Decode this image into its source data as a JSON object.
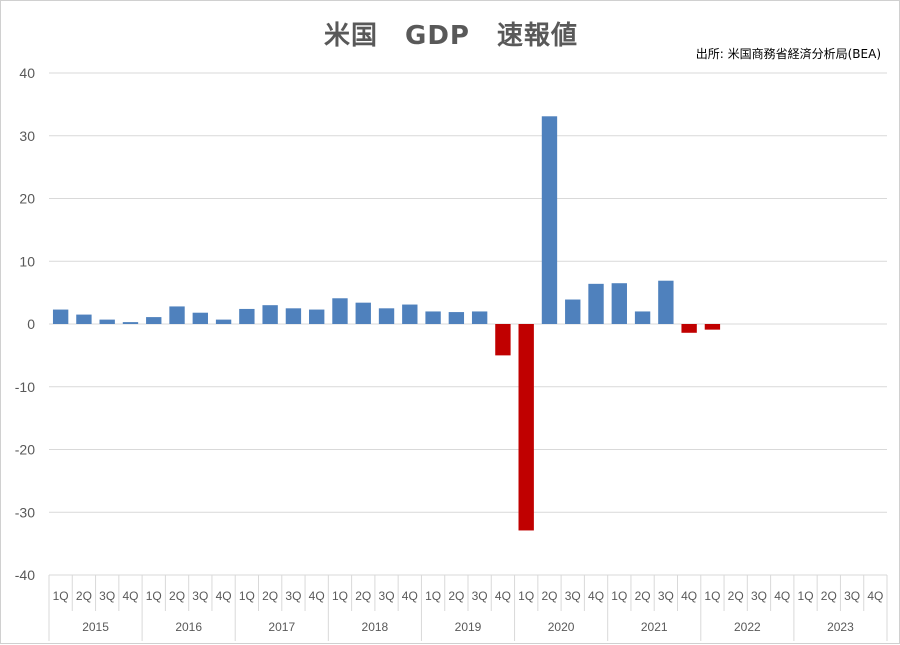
{
  "chart_data": {
    "type": "bar",
    "title": "米国　GDP　速報値",
    "source": "出所: 米国商務省経済分析局(BEA)",
    "ylim": [
      -40,
      40
    ],
    "yticks": [
      40,
      30,
      20,
      10,
      0,
      -10,
      -20,
      -30,
      -40
    ],
    "grid": true,
    "quarters": [
      "1Q",
      "2Q",
      "3Q",
      "4Q"
    ],
    "years": [
      "2015",
      "2016",
      "2017",
      "2018",
      "2019",
      "2020",
      "2021",
      "2022",
      "2023"
    ],
    "values": [
      2.3,
      1.5,
      0.7,
      0.3,
      1.1,
      2.8,
      1.8,
      0.7,
      2.4,
      3.0,
      2.5,
      2.3,
      4.1,
      3.4,
      2.5,
      3.1,
      2.0,
      1.9,
      2.0,
      -5.0,
      -32.9,
      33.1,
      3.9,
      6.4,
      6.5,
      2.0,
      6.9,
      -1.4,
      -0.9,
      null,
      null,
      null,
      null,
      null,
      null,
      null
    ],
    "colors": {
      "positive": "#4f81bd",
      "negative": "#c00000"
    }
  }
}
